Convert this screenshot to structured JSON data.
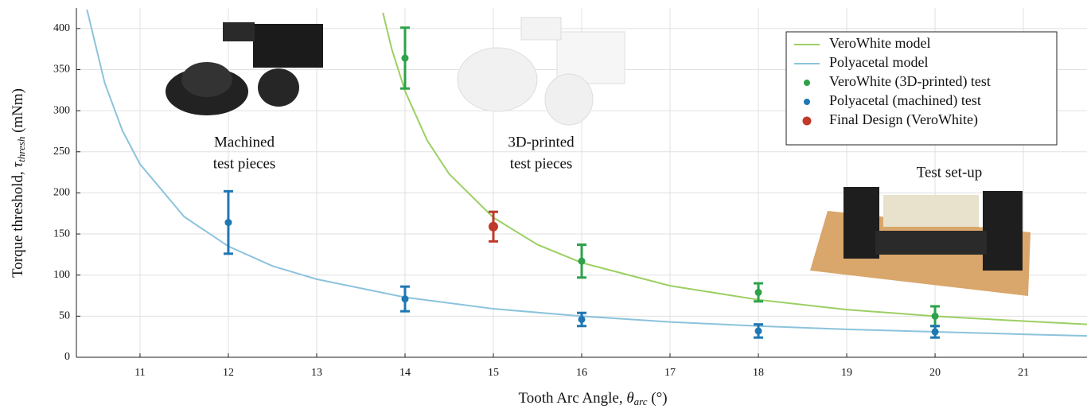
{
  "chart_data": {
    "type": "errorbar-model",
    "x_label": [
      "Tooth Arc Angle, ",
      "θ",
      "arc",
      " (°)"
    ],
    "y_label": [
      "Torque threshold, ",
      "τ",
      "thresh",
      " (mNm)"
    ],
    "xlim": [
      10.28,
      21.72
    ],
    "ylim": [
      0,
      425
    ],
    "xticks": [
      11,
      12,
      13,
      14,
      15,
      16,
      17,
      18,
      19,
      20,
      21
    ],
    "yticks": [
      0,
      50,
      100,
      150,
      200,
      250,
      300,
      350,
      400
    ],
    "grid": true,
    "legend": "upper-right",
    "series": [
      {
        "name": "VeroWhite model",
        "color": "#9ccf63",
        "kind": "line",
        "x": [
          13.75,
          13.85,
          14,
          14.25,
          14.5,
          15,
          15.5,
          16,
          17,
          18,
          19,
          20,
          21,
          21.72
        ],
        "values": [
          419,
          375,
          324,
          264,
          223,
          170,
          137,
          115,
          87,
          70,
          58,
          50,
          44,
          40
        ]
      },
      {
        "name": "Polyacetal model",
        "color": "#8cc3dc",
        "kind": "line",
        "x": [
          10.4,
          10.6,
          10.8,
          11,
          11.5,
          12,
          12.5,
          13,
          14,
          15,
          16,
          17,
          18,
          19,
          20,
          21,
          21.72
        ],
        "values": [
          423,
          334,
          276,
          235,
          171,
          135,
          111,
          95,
          73,
          59,
          50,
          43,
          38,
          34,
          31,
          28,
          26
        ]
      },
      {
        "name": "VeroWhite (3D-printed) test",
        "color": "#2ea24a",
        "kind": "errorbar",
        "x": [
          14,
          16,
          18,
          20
        ],
        "values": [
          364,
          117,
          79,
          50
        ],
        "errors": [
          37,
          20,
          11,
          12
        ]
      },
      {
        "name": "Polyacetal (machined) test",
        "color": "#1f77b4",
        "kind": "errorbar",
        "x": [
          12,
          14,
          16,
          18,
          20
        ],
        "values": [
          164,
          71,
          46,
          32,
          31
        ],
        "errors": [
          38,
          15,
          8,
          8,
          7
        ]
      },
      {
        "name": "Final Design (VeroWhite)",
        "color": "#c0392b",
        "kind": "errorbar",
        "x": [
          15
        ],
        "values": [
          159
        ],
        "errors": [
          18
        ]
      }
    ],
    "annotations": [
      [
        "Machined",
        "test pieces"
      ],
      [
        "3D-printed",
        "test pieces"
      ],
      [
        "Test set-up"
      ]
    ]
  }
}
